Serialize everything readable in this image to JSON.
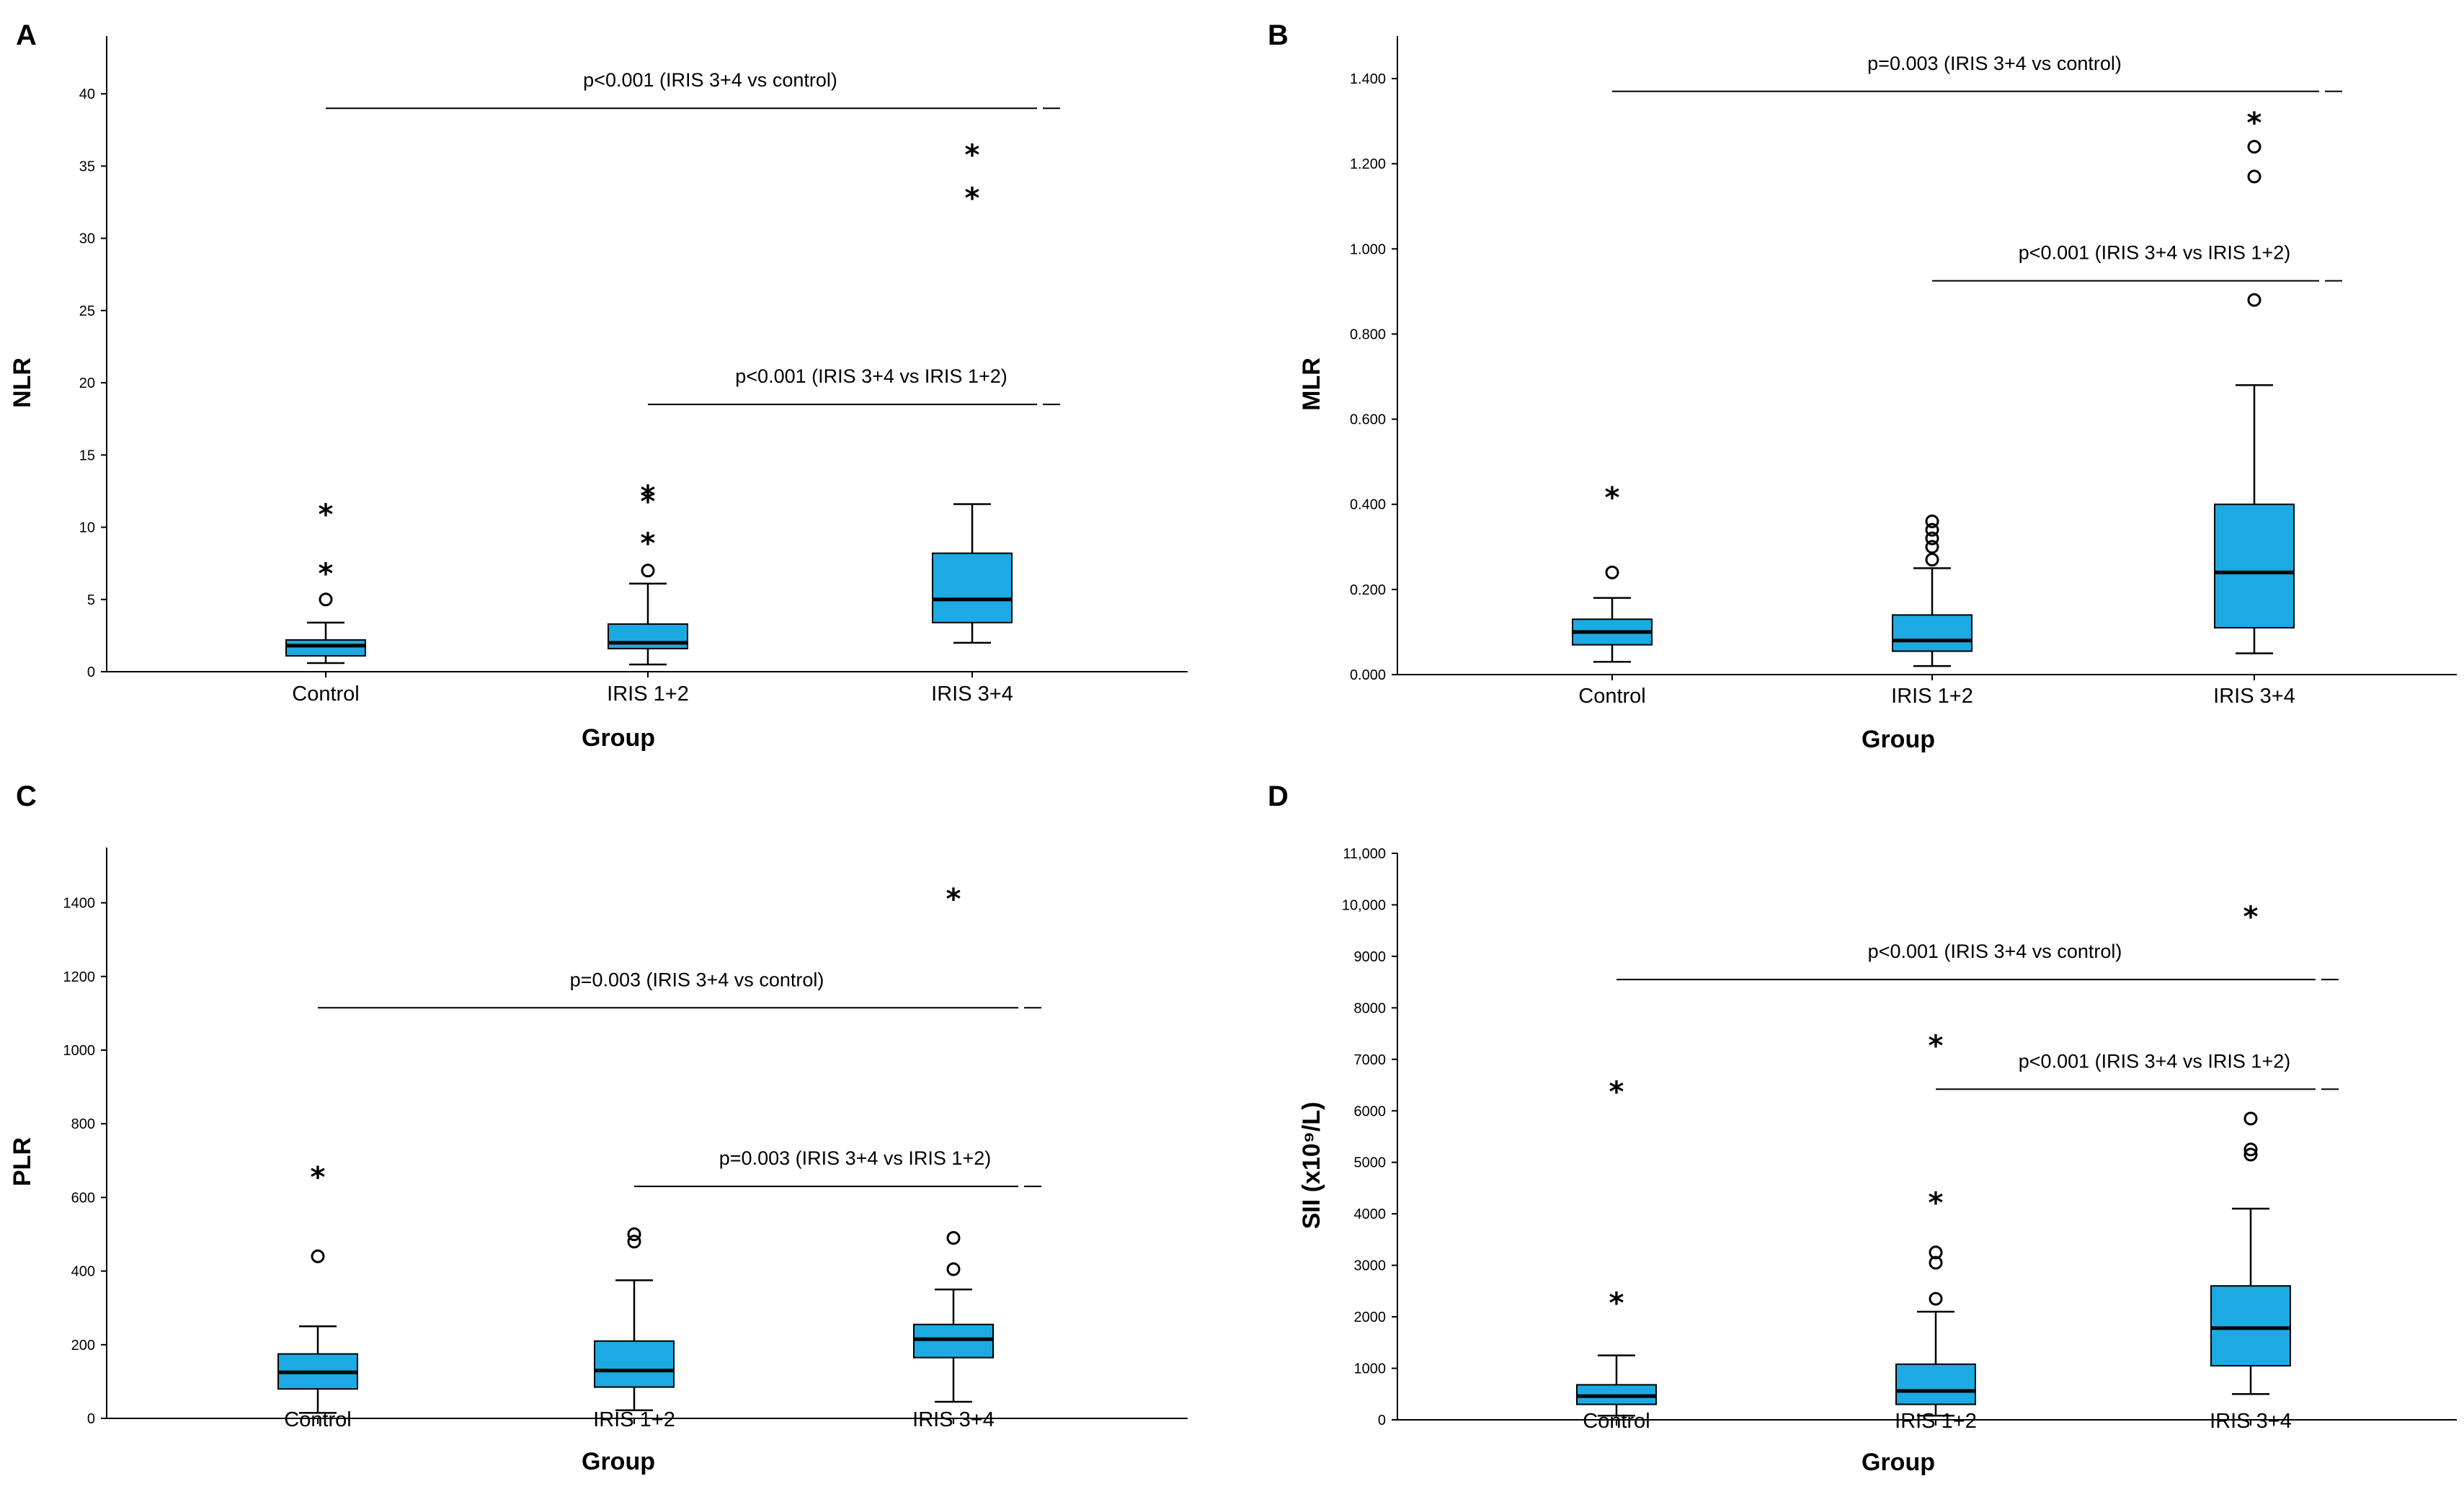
{
  "colors": {
    "box_fill": "#1DA9E2",
    "stroke": "#000000",
    "background": "#ffffff"
  },
  "chart_data": [
    {
      "type": "box",
      "panel": "A",
      "xlabel": "Group",
      "ylabel": "NLR",
      "categories": [
        "Control",
        "IRIS 1+2",
        "IRIS 3+4"
      ],
      "ylim": [
        0,
        44
      ],
      "yticks": [
        0,
        5,
        10,
        15,
        20,
        25,
        30,
        35,
        40
      ],
      "yticklabels": [
        "0",
        "5",
        "10",
        "15",
        "20",
        "25",
        "30",
        "35",
        "40"
      ],
      "boxes": [
        {
          "min": 0.6,
          "q1": 1.1,
          "median": 1.8,
          "q3": 2.2,
          "max": 3.4,
          "outliers_circle": [
            5.0
          ],
          "outliers_star": [
            6.9,
            11.0
          ]
        },
        {
          "min": 0.5,
          "q1": 1.6,
          "median": 2.0,
          "q3": 3.3,
          "max": 6.1,
          "outliers_circle": [
            7.0
          ],
          "outliers_star": [
            9.0,
            11.9,
            12.3
          ]
        },
        {
          "min": 2.0,
          "q1": 3.4,
          "median": 5.0,
          "q3": 8.2,
          "max": 11.6,
          "outliers_circle": [],
          "outliers_star": [
            32.9,
            35.9
          ]
        }
      ],
      "annotations": [
        {
          "text": "p<0.001 (IRIS 3+4 vs control)",
          "from": 0,
          "to": 2,
          "y": 39.0
        },
        {
          "text": "p<0.001 (IRIS 3+4 vs IRIS 1+2)",
          "from": 1,
          "to": 2,
          "y": 18.5
        }
      ]
    },
    {
      "type": "box",
      "panel": "B",
      "xlabel": "Group",
      "ylabel": "MLR",
      "categories": [
        "Control",
        "IRIS 1+2",
        "IRIS 3+4"
      ],
      "ylim": [
        0,
        1.5
      ],
      "yticks": [
        0,
        0.2,
        0.4,
        0.6,
        0.8,
        1.0,
        1.2,
        1.4
      ],
      "yticklabels": [
        "0.000",
        "0.200",
        "0.400",
        "0.600",
        "0.800",
        "1.000",
        "1.200",
        "1.400"
      ],
      "boxes": [
        {
          "min": 0.03,
          "q1": 0.07,
          "median": 0.1,
          "q3": 0.13,
          "max": 0.18,
          "outliers_circle": [
            0.24
          ],
          "outliers_star": [
            0.42
          ]
        },
        {
          "min": 0.02,
          "q1": 0.055,
          "median": 0.08,
          "q3": 0.14,
          "max": 0.25,
          "outliers_circle": [
            0.27,
            0.3,
            0.32,
            0.34,
            0.36
          ],
          "outliers_star": []
        },
        {
          "min": 0.05,
          "q1": 0.11,
          "median": 0.24,
          "q3": 0.4,
          "max": 0.68,
          "outliers_circle": [
            0.88,
            1.17,
            1.24
          ],
          "outliers_star": [
            1.3
          ]
        }
      ],
      "annotations": [
        {
          "text": "p=0.003 (IRIS 3+4 vs control)",
          "from": 0,
          "to": 2,
          "y": 1.37
        },
        {
          "text": "p<0.001 (IRIS 3+4 vs IRIS 1+2)",
          "from": 1,
          "to": 2,
          "y": 0.925
        }
      ]
    },
    {
      "type": "box",
      "panel": "C",
      "xlabel": "Group",
      "ylabel": "PLR",
      "categories": [
        "Control",
        "IRIS 1+2",
        "IRIS 3+4"
      ],
      "ylim": [
        0,
        1550
      ],
      "yticks": [
        0,
        200,
        400,
        600,
        800,
        1000,
        1200,
        1400
      ],
      "yticklabels": [
        "0",
        "200",
        "400",
        "600",
        "800",
        "1000",
        "1200",
        "1400"
      ],
      "boxes": [
        {
          "min": 15,
          "q1": 80,
          "median": 125,
          "q3": 175,
          "max": 250,
          "outliers_circle": [
            440
          ],
          "outliers_star": [
            660
          ]
        },
        {
          "min": 22,
          "q1": 85,
          "median": 130,
          "q3": 210,
          "max": 375,
          "outliers_circle": [
            480,
            500
          ],
          "outliers_star": []
        },
        {
          "min": 45,
          "q1": 165,
          "median": 215,
          "q3": 255,
          "max": 350,
          "outliers_circle": [
            405,
            490
          ],
          "outliers_star": [
            1415
          ]
        }
      ],
      "annotations": [
        {
          "text": "p=0.003 (IRIS 3+4 vs control)",
          "from": 0,
          "to": 2,
          "y": 1115
        },
        {
          "text": "p=0.003 (IRIS 3+4 vs IRIS 1+2)",
          "from": 1,
          "to": 2,
          "y": 630
        }
      ]
    },
    {
      "type": "box",
      "panel": "D",
      "xlabel": "Group",
      "ylabel": "SII (x10⁹/L)",
      "categories": [
        "Control",
        "IRIS 1+2",
        "IRIS 3+4"
      ],
      "ylim": [
        0,
        11000
      ],
      "yticks": [
        0,
        1000,
        2000,
        3000,
        4000,
        5000,
        6000,
        7000,
        8000,
        9000,
        10000,
        11000
      ],
      "yticklabels": [
        "0",
        "1000",
        "2000",
        "3000",
        "4000",
        "5000",
        "6000",
        "7000",
        "8000",
        "9000",
        "10,000",
        "11,000"
      ],
      "boxes": [
        {
          "min": 80,
          "q1": 300,
          "median": 460,
          "q3": 680,
          "max": 1250,
          "outliers_circle": [],
          "outliers_star": [
            2300,
            6400
          ]
        },
        {
          "min": 80,
          "q1": 300,
          "median": 560,
          "q3": 1080,
          "max": 2100,
          "outliers_circle": [
            2350,
            3050,
            3250
          ],
          "outliers_star": [
            4250,
            7300
          ]
        },
        {
          "min": 500,
          "q1": 1050,
          "median": 1780,
          "q3": 2600,
          "max": 4100,
          "outliers_circle": [
            5150,
            5250,
            5850
          ],
          "outliers_star": [
            9800
          ]
        }
      ],
      "annotations": [
        {
          "text": "p<0.001 (IRIS 3+4 vs control)",
          "from": 0,
          "to": 2,
          "y": 8550
        },
        {
          "text": "p<0.001 (IRIS 3+4 vs IRIS 1+2)",
          "from": 1,
          "to": 2,
          "y": 6420
        }
      ]
    }
  ]
}
